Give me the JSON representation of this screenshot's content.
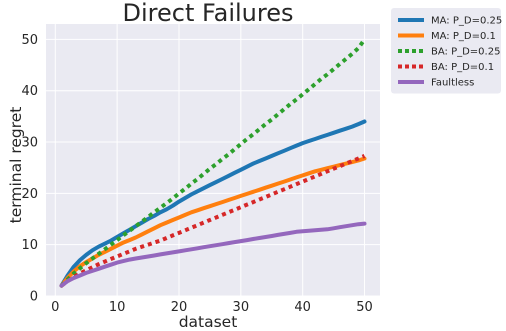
{
  "chart_data": {
    "type": "line",
    "title": "Direct Failures",
    "xlabel": "dataset",
    "ylabel": "terminal regret",
    "xlim": [
      -1.5,
      52.5
    ],
    "ylim": [
      0,
      53
    ],
    "xticks": [
      0,
      10,
      20,
      30,
      40,
      50
    ],
    "yticks": [
      0,
      10,
      20,
      30,
      40,
      50
    ],
    "grid": true,
    "legend_position": "outside-right",
    "background": "#eaeaf2",
    "x": [
      1,
      2,
      3,
      4,
      5,
      6,
      7,
      8,
      9,
      10,
      11,
      12,
      13,
      14,
      15,
      16,
      17,
      18,
      19,
      20,
      21,
      22,
      23,
      24,
      25,
      26,
      27,
      28,
      29,
      30,
      31,
      32,
      33,
      34,
      35,
      36,
      37,
      38,
      39,
      40,
      41,
      42,
      43,
      44,
      45,
      46,
      47,
      48,
      49,
      50
    ],
    "series": [
      {
        "name": "MA: P_D=0.25",
        "color": "#1f77b4",
        "style": "solid",
        "values": [
          2.0,
          4.0,
          5.7,
          7.0,
          8.0,
          8.9,
          9.6,
          10.2,
          10.8,
          11.5,
          12.2,
          12.9,
          13.6,
          14.3,
          15.0,
          15.6,
          16.3,
          16.9,
          17.6,
          18.4,
          19.1,
          19.8,
          20.4,
          21.0,
          21.6,
          22.2,
          22.8,
          23.4,
          24.0,
          24.6,
          25.2,
          25.8,
          26.3,
          26.8,
          27.3,
          27.8,
          28.3,
          28.8,
          29.3,
          29.8,
          30.2,
          30.6,
          31.0,
          31.4,
          31.8,
          32.2,
          32.6,
          33.0,
          33.5,
          34.0
        ]
      },
      {
        "name": "MA: P_D=0.1",
        "color": "#ff7f0e",
        "style": "solid",
        "values": [
          2.0,
          3.5,
          4.8,
          5.8,
          6.6,
          7.3,
          8.0,
          8.6,
          9.2,
          9.8,
          10.4,
          10.9,
          11.4,
          12.0,
          12.6,
          13.2,
          13.8,
          14.3,
          14.8,
          15.3,
          15.8,
          16.3,
          16.7,
          17.1,
          17.5,
          17.9,
          18.3,
          18.7,
          19.1,
          19.5,
          19.9,
          20.3,
          20.7,
          21.1,
          21.5,
          21.9,
          22.3,
          22.7,
          23.1,
          23.5,
          23.9,
          24.3,
          24.6,
          24.9,
          25.2,
          25.5,
          25.8,
          26.1,
          26.4,
          26.8
        ]
      },
      {
        "name": "BA: P_D=0.25",
        "color": "#2ca02c",
        "style": "dotted",
        "values": [
          2.0,
          3.2,
          4.4,
          5.4,
          6.4,
          7.3,
          8.2,
          9.1,
          10.0,
          10.9,
          11.8,
          12.7,
          13.6,
          14.5,
          15.4,
          16.3,
          17.2,
          18.1,
          19.0,
          20.0,
          20.9,
          21.9,
          22.8,
          23.8,
          24.8,
          25.7,
          26.7,
          27.6,
          28.6,
          29.6,
          30.6,
          31.5,
          32.5,
          33.5,
          34.4,
          35.4,
          36.4,
          37.4,
          38.3,
          39.3,
          40.3,
          41.3,
          42.3,
          43.2,
          44.2,
          45.2,
          46.2,
          47.2,
          48.3,
          50.0
        ]
      },
      {
        "name": "BA: P_D=0.1",
        "color": "#d62728",
        "style": "dotted",
        "values": [
          2.0,
          2.9,
          3.7,
          4.4,
          5.0,
          5.6,
          6.2,
          6.7,
          7.2,
          7.7,
          8.2,
          8.7,
          9.2,
          9.6,
          10.0,
          10.4,
          10.8,
          11.3,
          11.8,
          12.3,
          12.8,
          13.3,
          13.8,
          14.3,
          14.8,
          15.3,
          15.8,
          16.3,
          16.8,
          17.3,
          17.8,
          18.3,
          18.8,
          19.3,
          19.8,
          20.3,
          20.8,
          21.3,
          21.8,
          22.3,
          22.8,
          23.3,
          23.8,
          24.3,
          24.8,
          25.3,
          25.8,
          26.3,
          26.8,
          27.3
        ]
      },
      {
        "name": "Faultless",
        "color": "#9467bd",
        "style": "solid",
        "values": [
          2.0,
          2.9,
          3.5,
          4.0,
          4.5,
          4.9,
          5.3,
          5.7,
          6.1,
          6.5,
          6.8,
          7.1,
          7.3,
          7.5,
          7.7,
          7.9,
          8.1,
          8.3,
          8.5,
          8.7,
          8.9,
          9.1,
          9.3,
          9.5,
          9.7,
          9.9,
          10.1,
          10.3,
          10.5,
          10.7,
          10.9,
          11.1,
          11.3,
          11.5,
          11.7,
          11.9,
          12.1,
          12.3,
          12.5,
          12.6,
          12.7,
          12.8,
          12.9,
          13.0,
          13.2,
          13.4,
          13.6,
          13.8,
          14.0,
          14.1
        ]
      }
    ]
  }
}
